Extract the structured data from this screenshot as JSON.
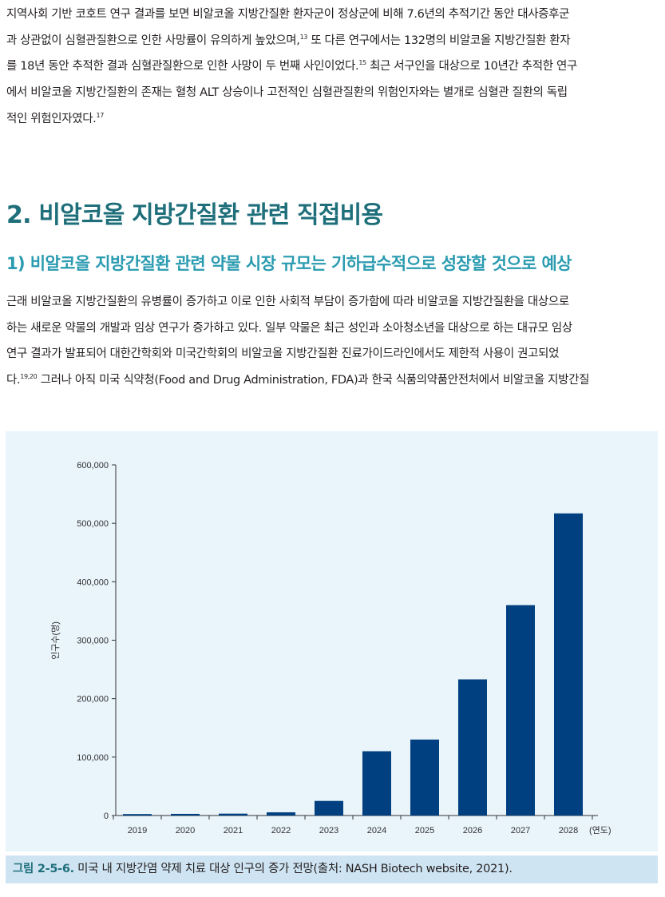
{
  "intro": {
    "lines": [
      "지역사회 기반 코호트 연구 결과를 보면 비알코올 지방간질환 환자군이 정상군에 비해 7.6년의 추적기간 동안 대사증후군",
      "과 상관없이 심혈관질환으로 인한 사망률이 유의하게 높았으며,",
      "또 다른 연구에서는 132명의 비알코올 지방간질환 환자",
      "를 18년 동안 추적한 결과 심혈관질환으로 인한 사망이 두 번째 사인이었다.",
      "최근 서구인을 대상으로 10년간 추적한 연구",
      "에서 비알코올 지방간질환의 존재는 혈청 ALT 상승이나 고전적인 심혈관질환의 위험인자와는 별개로 심혈관 질환의 독립",
      "적인 위험인자였다."
    ],
    "refs": [
      "13",
      "15",
      "17"
    ]
  },
  "section_heading": "2. 비알코올 지방간질환 관련 직접비용",
  "subsection_heading": "1) 비알코올 지방간질환 관련 약물 시장 규모는 기하급수적으로 성장할 것으로 예상",
  "body": {
    "lines": [
      "근래 비알코올 지방간질환의 유병률이 증가하고 이로 인한 사회적 부담이 증가함에 따라 비알코올 지방간질환을 대상으로",
      "하는 새로운 약물의 개발과 임상 연구가 증가하고 있다. 일부 약물은 최근 성인과 소아청소년을 대상으로 하는 대규모 임상",
      "연구 결과가 발표되어 대한간학회와 미국간학회의 비알코올 지방간질환 진료가이드라인에서도 제한적 사용이 권고되었",
      "다.",
      "그러나 아직 미국 식약청(Food and Drug Administration, FDA)과 한국 식품의약품안전처에서 비알코올 지방간질"
    ],
    "refs": [
      "19,20"
    ]
  },
  "figure": {
    "caption_label": "그림 2-5-6.",
    "caption_text": "미국 내 지방간염 약제 치료 대상 인구의 증가 전망(출처: NASH Biotech website, 2021).",
    "bar_color": "#004080",
    "background": "#e9f4fb"
  },
  "chart_data": {
    "type": "bar",
    "categories": [
      "2019",
      "2020",
      "2021",
      "2022",
      "2023",
      "2024",
      "2025",
      "2026",
      "2027",
      "2028"
    ],
    "values": [
      2500,
      2800,
      3200,
      5500,
      25000,
      110000,
      130000,
      233000,
      360000,
      517000
    ],
    "ylabel": "인구수(명)",
    "xlabel": "(연도)",
    "ylim": [
      0,
      600000
    ],
    "yticks": [
      0,
      100000,
      200000,
      300000,
      400000,
      500000,
      600000
    ],
    "ytick_labels": [
      "0",
      "100,000",
      "200,000",
      "300,000",
      "400,000",
      "500,000",
      "600,000"
    ],
    "grid": false,
    "legend": "none"
  }
}
